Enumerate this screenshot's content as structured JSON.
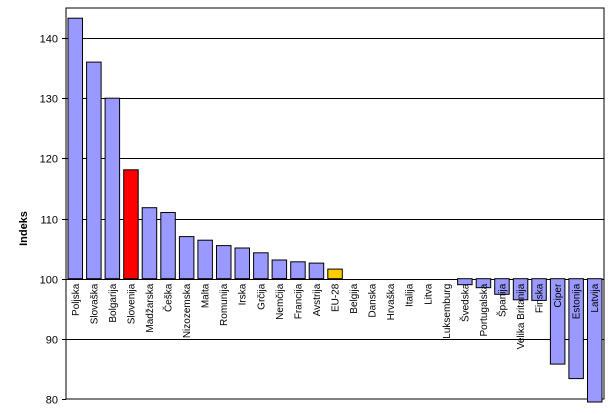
{
  "chart_data": {
    "type": "bar",
    "ylabel": "Indeks",
    "ylim": [
      80,
      145
    ],
    "yticks": [
      80,
      90,
      100,
      110,
      120,
      130,
      140
    ],
    "baseline": 100,
    "grid": true,
    "categories": [
      "Poljska",
      "Slovaška",
      "Bolgarija",
      "Slovenija",
      "Madžarska",
      "Češka",
      "Nizozemska",
      "Malta",
      "Romunija",
      "Irska",
      "Grčija",
      "Nemčija",
      "Francija",
      "Avstrija",
      "EU-28",
      "Belgija",
      "Danska",
      "Hrvaška",
      "Italija",
      "Litva",
      "Luksemburg",
      "Švedska",
      "Portugalska",
      "Španija",
      "Velika Britanija",
      "Finska",
      "Ciper",
      "Estonija",
      "Latvija"
    ],
    "values": [
      143.3,
      136.0,
      130.0,
      118.1,
      111.8,
      111.0,
      107.0,
      106.4,
      105.5,
      105.1,
      104.3,
      103.1,
      102.8,
      102.6,
      101.6,
      100.0,
      100.0,
      100.0,
      100.0,
      100.0,
      100.0,
      99.0,
      98.5,
      97.4,
      96.5,
      96.4,
      85.8,
      83.4,
      79.5
    ],
    "colors": {
      "default": "#9999ff",
      "highlight_slovenija": "#ff0000",
      "highlight_eu": "#ffcc00"
    },
    "highlight_index": {
      "3": "#ff0000",
      "14": "#ffcc00"
    }
  }
}
